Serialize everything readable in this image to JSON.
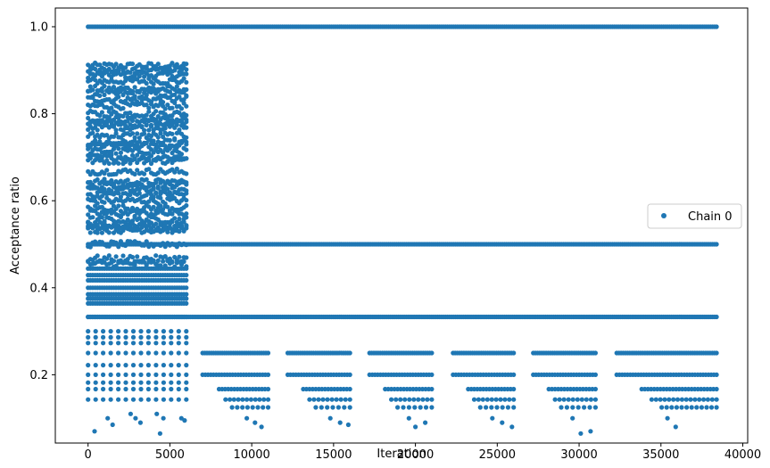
{
  "chart_data": {
    "type": "scatter",
    "xlabel": "Iteration",
    "ylabel": "Acceptance ratio",
    "xlim": [
      -2000,
      40300
    ],
    "ylim": [
      0.043,
      1.043
    ],
    "xticks": [
      0,
      5000,
      10000,
      15000,
      20000,
      25000,
      30000,
      35000,
      40000
    ],
    "xtick_labels": [
      "0",
      "5000",
      "10000",
      "15000",
      "20000",
      "25000",
      "30000",
      "35000",
      "40000"
    ],
    "yticks": [
      0.2,
      0.4,
      0.6,
      0.8,
      1.0
    ],
    "ytick_labels": [
      "0.2",
      "0.4",
      "0.6",
      "0.8",
      "1.0"
    ],
    "grid": false,
    "legend": {
      "location": "center-right",
      "entries": [
        "Chain 0"
      ]
    },
    "marker_color": "#1f77b4",
    "series": [
      {
        "name": "Chain 0",
        "color": "#1f77b4",
        "bands": [
          {
            "x_range": [
              0,
              38400
            ],
            "y_values": [
              1.0
            ]
          },
          {
            "x_range": [
              0,
              6000
            ],
            "y_values": [
              0.91,
              0.9,
              0.889,
              0.875,
              0.857,
              0.846,
              0.833,
              0.818,
              0.8,
              0.786,
              0.778,
              0.769,
              0.75,
              0.733,
              0.727,
              0.714,
              0.7,
              0.692,
              0.667,
              0.643,
              0.636,
              0.625,
              0.615,
              0.6,
              0.583,
              0.571,
              0.556,
              0.545,
              0.538,
              0.533,
              0.5,
              0.467,
              0.455,
              0.444,
              0.429,
              0.417,
              0.4,
              0.385,
              0.375,
              0.364,
              0.333,
              0.3,
              0.286,
              0.273,
              0.25,
              0.222,
              0.2,
              0.182,
              0.167,
              0.143
            ]
          },
          {
            "x_range": [
              0,
              38400
            ],
            "y_values": [
              0.5
            ]
          },
          {
            "x_range": [
              0,
              38400
            ],
            "y_values": [
              0.333
            ]
          },
          {
            "x_range": [
              7000,
              11000
            ],
            "y_values": [
              0.25,
              0.2,
              0.167,
              0.143,
              0.125
            ]
          },
          {
            "x_range": [
              12200,
              16000
            ],
            "y_values": [
              0.25,
              0.2,
              0.167,
              0.143,
              0.125
            ]
          },
          {
            "x_range": [
              17200,
              21000
            ],
            "y_values": [
              0.25,
              0.2,
              0.167,
              0.143,
              0.125
            ]
          },
          {
            "x_range": [
              22300,
              26000
            ],
            "y_values": [
              0.25,
              0.2,
              0.167,
              0.143,
              0.125
            ]
          },
          {
            "x_range": [
              27200,
              31000
            ],
            "y_values": [
              0.25,
              0.2,
              0.167,
              0.143,
              0.125
            ]
          },
          {
            "x_range": [
              32300,
              38400
            ],
            "y_values": [
              0.25,
              0.2,
              0.167,
              0.143,
              0.125
            ]
          }
        ],
        "scattered_low_points": [
          [
            400,
            0.07
          ],
          [
            1200,
            0.1
          ],
          [
            1500,
            0.085
          ],
          [
            2600,
            0.11
          ],
          [
            2900,
            0.1
          ],
          [
            3200,
            0.09
          ],
          [
            4200,
            0.11
          ],
          [
            4400,
            0.065
          ],
          [
            4600,
            0.1
          ],
          [
            5700,
            0.1
          ],
          [
            5900,
            0.095
          ],
          [
            9700,
            0.1
          ],
          [
            10200,
            0.09
          ],
          [
            10600,
            0.08
          ],
          [
            14800,
            0.1
          ],
          [
            15400,
            0.09
          ],
          [
            15900,
            0.085
          ],
          [
            19600,
            0.1
          ],
          [
            20000,
            0.08
          ],
          [
            20600,
            0.09
          ],
          [
            24700,
            0.1
          ],
          [
            25300,
            0.09
          ],
          [
            25900,
            0.08
          ],
          [
            29600,
            0.1
          ],
          [
            30100,
            0.065
          ],
          [
            30700,
            0.07
          ],
          [
            35400,
            0.1
          ],
          [
            35900,
            0.08
          ]
        ]
      }
    ]
  }
}
